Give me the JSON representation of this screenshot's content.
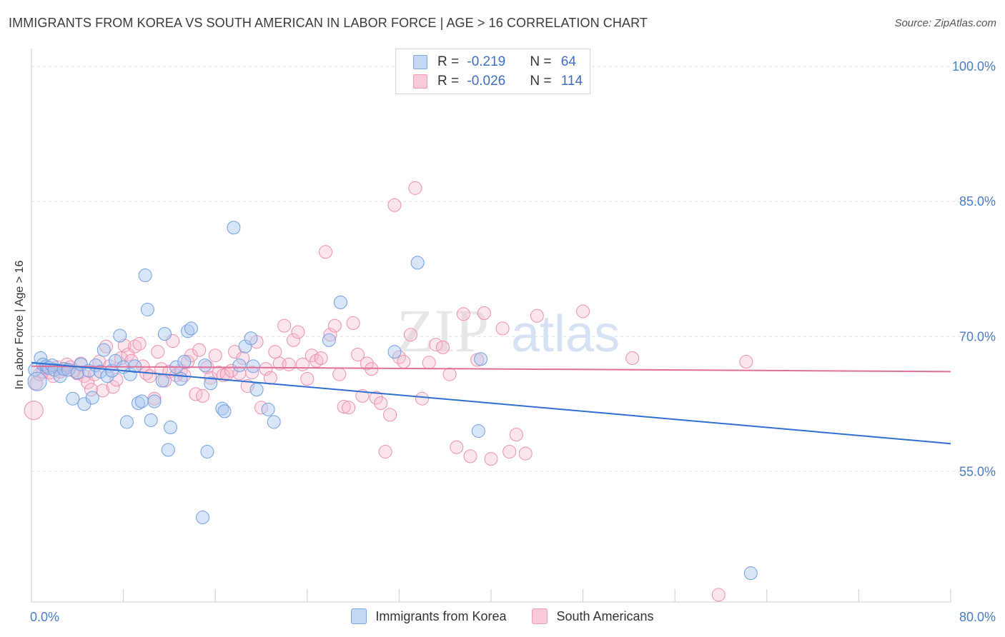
{
  "title": "IMMIGRANTS FROM KOREA VS SOUTH AMERICAN IN LABOR FORCE | AGE > 16 CORRELATION CHART",
  "source": "Source: ZipAtlas.com",
  "watermark": {
    "zip": "ZIP",
    "atlas": "atlas"
  },
  "legend": {
    "korea": {
      "r_label": "R = ",
      "r": "-0.219",
      "n_label": "N = ",
      "n": "64"
    },
    "south": {
      "r_label": "R = ",
      "r": "-0.026",
      "n_label": "N = ",
      "n": "114"
    }
  },
  "bottom_legend": {
    "korea": "Immigrants from Korea",
    "south": "South Americans"
  },
  "colors": {
    "korea_fill": "#aac8f0",
    "korea_stroke": "#6f9fe0",
    "korea_line": "#2f6fd0",
    "south_fill": "#f6b8cc",
    "south_stroke": "#ec8fae",
    "south_line": "#e0709a"
  },
  "chart_data": {
    "type": "scatter",
    "title": "IMMIGRANTS FROM KOREA VS SOUTH AMERICAN IN LABOR FORCE | AGE > 16 CORRELATION CHART",
    "xlabel": "",
    "ylabel": "In Labor Force | Age > 16",
    "xlim": [
      0,
      80
    ],
    "ylim": [
      40.5,
      102
    ],
    "x_tick_labels": [
      "0.0%",
      "80.0%"
    ],
    "y_ticks": [
      55,
      70,
      85,
      100
    ],
    "y_tick_labels": [
      "55.0%",
      "70.0%",
      "85.0%",
      "100.0%"
    ],
    "grid": true,
    "legend_position": "top-center",
    "series": [
      {
        "name": "Immigrants from Korea",
        "trend": [
          [
            0,
            67.1
          ],
          [
            80,
            58.1
          ]
        ],
        "points": [
          [
            0.3,
            66.3
          ],
          [
            0.5,
            65.0
          ],
          [
            0.8,
            67.6
          ],
          [
            1.0,
            66.9
          ],
          [
            1.3,
            66.7
          ],
          [
            1.5,
            66.5
          ],
          [
            1.8,
            66.8
          ],
          [
            2.0,
            66.3
          ],
          [
            2.5,
            65.6
          ],
          [
            2.8,
            66.4
          ],
          [
            3.2,
            66.3
          ],
          [
            3.6,
            63.1
          ],
          [
            4.0,
            66.0
          ],
          [
            4.3,
            66.9
          ],
          [
            4.6,
            62.5
          ],
          [
            5.0,
            66.2
          ],
          [
            5.3,
            63.2
          ],
          [
            5.6,
            66.8
          ],
          [
            6.0,
            66.1
          ],
          [
            6.3,
            68.5
          ],
          [
            6.6,
            65.6
          ],
          [
            7.0,
            66.2
          ],
          [
            7.3,
            67.3
          ],
          [
            7.7,
            70.1
          ],
          [
            8.0,
            66.6
          ],
          [
            8.3,
            60.5
          ],
          [
            8.6,
            65.8
          ],
          [
            9.0,
            66.7
          ],
          [
            9.3,
            62.6
          ],
          [
            9.6,
            62.8
          ],
          [
            9.9,
            76.8
          ],
          [
            10.1,
            73.0
          ],
          [
            10.4,
            60.7
          ],
          [
            10.7,
            62.8
          ],
          [
            11.4,
            65.1
          ],
          [
            11.6,
            70.3
          ],
          [
            11.9,
            57.4
          ],
          [
            12.1,
            59.9
          ],
          [
            12.6,
            66.6
          ],
          [
            13.0,
            65.3
          ],
          [
            13.3,
            67.2
          ],
          [
            13.6,
            70.6
          ],
          [
            13.9,
            70.9
          ],
          [
            14.9,
            49.9
          ],
          [
            15.1,
            66.8
          ],
          [
            15.3,
            57.2
          ],
          [
            15.6,
            64.8
          ],
          [
            16.6,
            62.0
          ],
          [
            16.8,
            61.7
          ],
          [
            17.6,
            82.1
          ],
          [
            18.1,
            66.8
          ],
          [
            18.6,
            68.9
          ],
          [
            19.1,
            69.8
          ],
          [
            19.3,
            66.7
          ],
          [
            19.6,
            64.1
          ],
          [
            20.6,
            61.9
          ],
          [
            21.1,
            60.5
          ],
          [
            25.9,
            69.6
          ],
          [
            26.9,
            73.8
          ],
          [
            31.6,
            68.3
          ],
          [
            33.6,
            78.2
          ],
          [
            38.9,
            59.5
          ],
          [
            39.1,
            67.5
          ],
          [
            62.6,
            43.7
          ]
        ]
      },
      {
        "name": "South Americans",
        "trend": [
          [
            0,
            66.7
          ],
          [
            80,
            66.1
          ]
        ],
        "points": [
          [
            0.2,
            61.8
          ],
          [
            0.4,
            64.8
          ],
          [
            0.7,
            65.8
          ],
          [
            1.0,
            66.1
          ],
          [
            1.3,
            66.5
          ],
          [
            1.6,
            66.0
          ],
          [
            1.9,
            65.6
          ],
          [
            2.2,
            66.6
          ],
          [
            2.5,
            66.1
          ],
          [
            2.9,
            66.4
          ],
          [
            3.1,
            66.9
          ],
          [
            3.4,
            66.6
          ],
          [
            3.7,
            66.2
          ],
          [
            4.0,
            65.9
          ],
          [
            4.3,
            67.0
          ],
          [
            4.6,
            65.6
          ],
          [
            4.9,
            64.9
          ],
          [
            5.2,
            64.1
          ],
          [
            5.5,
            65.8
          ],
          [
            5.9,
            67.2
          ],
          [
            6.2,
            64.0
          ],
          [
            6.5,
            68.9
          ],
          [
            6.8,
            66.7
          ],
          [
            7.1,
            64.4
          ],
          [
            7.4,
            65.2
          ],
          [
            7.8,
            67.6
          ],
          [
            8.1,
            69.0
          ],
          [
            8.4,
            68.0
          ],
          [
            8.7,
            67.3
          ],
          [
            9.0,
            68.9
          ],
          [
            9.4,
            69.2
          ],
          [
            9.7,
            66.7
          ],
          [
            10.0,
            65.9
          ],
          [
            10.3,
            65.6
          ],
          [
            10.7,
            63.1
          ],
          [
            11.0,
            68.3
          ],
          [
            11.3,
            66.4
          ],
          [
            11.6,
            65.1
          ],
          [
            12.0,
            66.1
          ],
          [
            12.3,
            69.5
          ],
          [
            12.6,
            65.7
          ],
          [
            13.0,
            66.2
          ],
          [
            13.3,
            65.7
          ],
          [
            13.6,
            67.2
          ],
          [
            13.9,
            67.9
          ],
          [
            14.3,
            63.6
          ],
          [
            14.6,
            68.5
          ],
          [
            14.9,
            63.4
          ],
          [
            15.3,
            66.6
          ],
          [
            15.6,
            65.4
          ],
          [
            16.0,
            67.9
          ],
          [
            16.3,
            66.0
          ],
          [
            16.7,
            65.7
          ],
          [
            17.0,
            65.8
          ],
          [
            17.4,
            66.2
          ],
          [
            17.7,
            68.3
          ],
          [
            18.1,
            65.9
          ],
          [
            18.4,
            67.6
          ],
          [
            18.8,
            64.5
          ],
          [
            19.2,
            66.0
          ],
          [
            19.6,
            69.4
          ],
          [
            20.0,
            62.1
          ],
          [
            20.4,
            66.4
          ],
          [
            20.8,
            65.4
          ],
          [
            21.2,
            68.3
          ],
          [
            21.6,
            67.0
          ],
          [
            22.0,
            71.2
          ],
          [
            22.4,
            66.9
          ],
          [
            22.8,
            69.6
          ],
          [
            23.2,
            70.5
          ],
          [
            23.6,
            66.9
          ],
          [
            24.0,
            65.3
          ],
          [
            24.4,
            67.9
          ],
          [
            24.8,
            67.3
          ],
          [
            25.2,
            67.6
          ],
          [
            25.6,
            79.4
          ],
          [
            26.0,
            70.2
          ],
          [
            26.4,
            71.2
          ],
          [
            26.8,
            65.8
          ],
          [
            27.2,
            62.2
          ],
          [
            27.6,
            62.1
          ],
          [
            28.0,
            71.5
          ],
          [
            28.4,
            68.0
          ],
          [
            28.8,
            63.4
          ],
          [
            29.2,
            67.0
          ],
          [
            29.6,
            66.4
          ],
          [
            30.0,
            63.2
          ],
          [
            30.4,
            62.6
          ],
          [
            30.8,
            57.2
          ],
          [
            31.2,
            61.3
          ],
          [
            31.6,
            84.6
          ],
          [
            32.0,
            67.7
          ],
          [
            32.4,
            67.2
          ],
          [
            33.0,
            70.2
          ],
          [
            33.4,
            86.5
          ],
          [
            34.0,
            63.1
          ],
          [
            34.6,
            67.1
          ],
          [
            35.2,
            69.1
          ],
          [
            35.8,
            68.8
          ],
          [
            36.4,
            65.8
          ],
          [
            37.0,
            57.7
          ],
          [
            37.6,
            72.5
          ],
          [
            38.2,
            56.7
          ],
          [
            38.8,
            67.4
          ],
          [
            39.4,
            72.6
          ],
          [
            40.0,
            56.4
          ],
          [
            41.0,
            70.9
          ],
          [
            41.6,
            57.2
          ],
          [
            42.2,
            59.1
          ],
          [
            43.0,
            57.0
          ],
          [
            44.0,
            72.3
          ],
          [
            48.0,
            72.8
          ],
          [
            52.3,
            67.6
          ],
          [
            59.8,
            41.3
          ],
          [
            62.2,
            67.2
          ]
        ]
      }
    ]
  }
}
